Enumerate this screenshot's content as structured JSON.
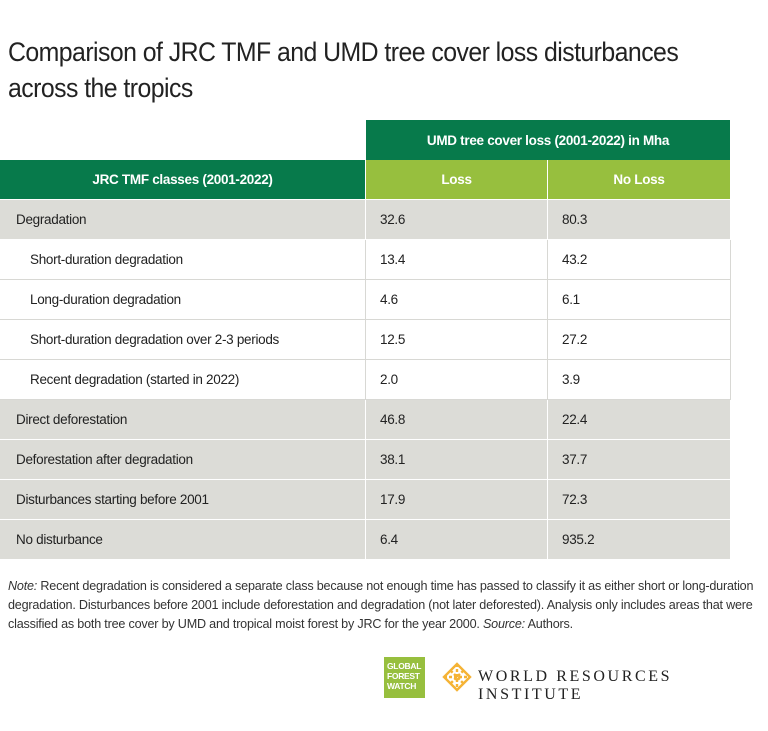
{
  "title": "Comparison of JRC TMF and UMD tree cover loss disturbances across the tropics",
  "chart_data": {
    "type": "table",
    "column_group_header": "UMD tree cover loss (2001-2022) in Mha",
    "row_header": "JRC TMF classes (2001-2022)",
    "columns": [
      "Loss",
      "No Loss"
    ],
    "rows": [
      {
        "label": "Degradation",
        "level": 0,
        "values": [
          "32.6",
          "80.3"
        ]
      },
      {
        "label": "Short-duration degradation",
        "level": 1,
        "values": [
          "13.4",
          "43.2"
        ]
      },
      {
        "label": "Long-duration degradation",
        "level": 1,
        "values": [
          "4.6",
          "6.1"
        ]
      },
      {
        "label": "Short-duration degradation over 2-3 periods",
        "level": 1,
        "values": [
          "12.5",
          "27.2"
        ]
      },
      {
        "label": "Recent degradation (started in 2022)",
        "level": 1,
        "values": [
          "2.0",
          "3.9"
        ]
      },
      {
        "label": "Direct deforestation",
        "level": 0,
        "values": [
          "46.8",
          "22.4"
        ]
      },
      {
        "label": "Deforestation after degradation",
        "level": 0,
        "values": [
          "38.1",
          "37.7"
        ]
      },
      {
        "label": "Disturbances starting before 2001",
        "level": 0,
        "values": [
          "17.9",
          "72.3"
        ]
      },
      {
        "label": "No disturbance",
        "level": 0,
        "values": [
          "6.4",
          "935.2"
        ]
      }
    ]
  },
  "note": {
    "label": "Note:",
    "text": " Recent degradation is considered a separate class because not enough time has passed to classify it as either short or long-duration degradation. Disturbances before 2001 include deforestation and degradation (not later deforested). Analysis only includes areas that were classified as both tree cover by UMD and tropical moist forest by JRC for the year 2000. ",
    "source_label": "Source:",
    "source": " Authors."
  },
  "logos": {
    "gfw": [
      "GLOBAL",
      "FOREST",
      "WATCH"
    ],
    "wri": "WORLD RESOURCES INSTITUTE"
  },
  "colors": {
    "dark_green": "#077a4b",
    "light_green": "#97bf3e",
    "row_gray": "#dcdcd7",
    "wri_gold": "#f5b335"
  }
}
